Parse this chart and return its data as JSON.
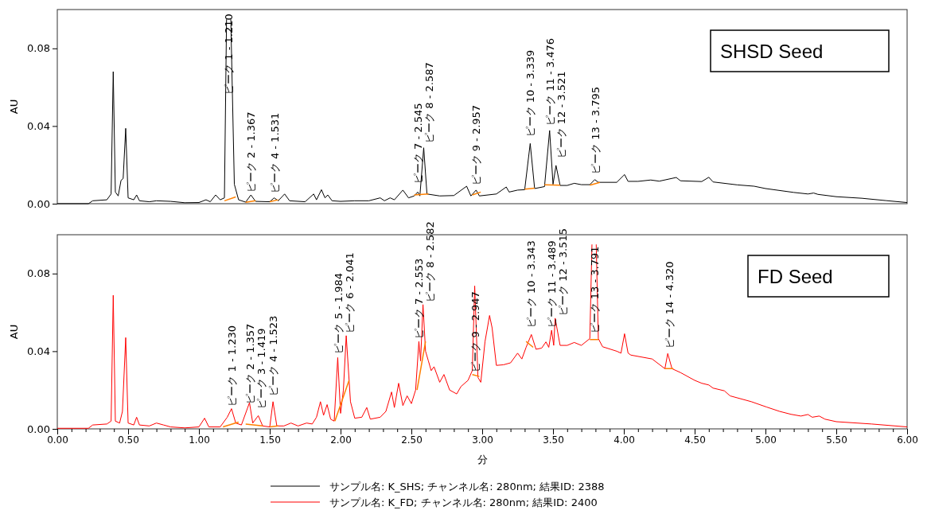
{
  "chart_data": [
    {
      "type": "line",
      "title": "SHSD Seed",
      "ylabel": "AU",
      "xlim": [
        0,
        6
      ],
      "ylim": [
        0,
        0.1
      ],
      "yticks": [
        {
          "value": 0,
          "label": "0.00"
        },
        {
          "value": 0.04,
          "label": "0.04"
        },
        {
          "value": 0.08,
          "label": "0.08"
        }
      ],
      "tick_labels": "y",
      "legend": "bottom",
      "grid": false,
      "series": [
        {
          "name": "サンプル名: K_SHS; チャンネル名: 280nm; 結果ID: 2388",
          "color": "#000000",
          "x": [
            0,
            0.22,
            0.25,
            0.35,
            0.38,
            0.395,
            0.41,
            0.43,
            0.45,
            0.465,
            0.483,
            0.5,
            0.54,
            0.56,
            0.58,
            0.65,
            0.7,
            0.8,
            0.9,
            1.0,
            1.05,
            1.08,
            1.118,
            1.15,
            1.18,
            1.195,
            1.2,
            1.22,
            1.225,
            1.25,
            1.28,
            1.33,
            1.367,
            1.4,
            1.5,
            1.531,
            1.56,
            1.605,
            1.64,
            1.75,
            1.81,
            1.83,
            1.865,
            1.89,
            1.91,
            1.94,
            2.0,
            2.1,
            2.2,
            2.28,
            2.31,
            2.35,
            2.38,
            2.44,
            2.48,
            2.52,
            2.545,
            2.56,
            2.587,
            2.61,
            2.7,
            2.8,
            2.89,
            2.92,
            2.957,
            2.98,
            3.1,
            3.17,
            3.19,
            3.25,
            3.3,
            3.339,
            3.37,
            3.44,
            3.476,
            3.5,
            3.521,
            3.55,
            3.6,
            3.65,
            3.7,
            3.76,
            3.795,
            3.82,
            3.95,
            4.005,
            4.03,
            4.1,
            4.19,
            4.25,
            4.37,
            4.4,
            4.55,
            4.6,
            4.63,
            4.8,
            4.92,
            5.0,
            5.2,
            5.3,
            5.34,
            5.37,
            5.5,
            5.68,
            5.85,
            6.0
          ],
          "values": [
            0,
            0,
            0.0015,
            0.002,
            0.005,
            0.068,
            0.006,
            0.004,
            0.012,
            0.013,
            0.0388,
            0.003,
            0.002,
            0.0045,
            0.0015,
            0.001,
            0.0015,
            0.0012,
            0.0005,
            0.0006,
            0.002,
            0.001,
            0.0045,
            0.002,
            0.003,
            0.095,
            null,
            null,
            0.095,
            0.01,
            0.002,
            0.0008,
            0.0045,
            0.0012,
            0.001,
            0.003,
            0.0015,
            0.005,
            0.0015,
            0.001,
            0.005,
            0.002,
            0.0072,
            0.003,
            0.0045,
            0.0015,
            0.0012,
            0.0015,
            0.0015,
            0.003,
            0.0015,
            0.003,
            0.002,
            0.007,
            0.003,
            0.004,
            0.006,
            0.004,
            0.0288,
            0.005,
            0.004,
            0.0042,
            0.009,
            0.004,
            0.007,
            0.004,
            0.005,
            0.0086,
            0.006,
            0.007,
            0.0072,
            0.031,
            0.0078,
            0.0088,
            0.0377,
            0.01,
            0.0197,
            0.0094,
            0.0094,
            0.0105,
            0.0098,
            0.0098,
            0.0124,
            0.011,
            0.011,
            0.015,
            0.0115,
            0.0115,
            0.0122,
            0.0116,
            0.0135,
            0.0118,
            0.0114,
            0.0136,
            0.0112,
            0.0097,
            0.009,
            0.0078,
            0.0058,
            0.005,
            0.0055,
            0.0048,
            0.0036,
            0.0028,
            0.0016,
            0.0006
          ]
        },
        {
          "color": "#ff8000",
          "x": [
            1.18,
            1.26,
            1.3,
            1.33,
            1.4,
            1.45,
            1.5,
            1.56,
            2.5,
            2.52,
            2.62,
            2.7,
            2.93,
            2.99,
            3.1,
            3.3,
            3.37,
            3.4,
            3.44,
            3.55,
            3.6,
            3.76,
            3.83
          ],
          "values": [
            0.0015,
            0.0035,
            null,
            0.0007,
            0.0015,
            null,
            0.001,
            0.002,
            null,
            0.0045,
            0.005,
            null,
            0.0045,
            0.006,
            null,
            0.0075,
            0.008,
            null,
            0.0097,
            0.0095,
            null,
            0.0095,
            0.011
          ]
        }
      ],
      "annotations": [
        {
          "text": "ピーク 1 - 1.210",
          "x": 1.21,
          "y": 0.055
        },
        {
          "text": "ピーク 2 - 1.367",
          "x": 1.367,
          "y": 0.0045
        },
        {
          "text": "ピーク 4 - 1.531",
          "x": 1.531,
          "y": 0.004
        },
        {
          "text": "ピーク 7 - 2.545",
          "x": 2.545,
          "y": 0.009
        },
        {
          "text": "ピーク 8 - 2.587",
          "x": 2.587,
          "y": 0.03
        },
        {
          "text": "ピーク 9 - 2.957",
          "x": 2.957,
          "y": 0.008
        },
        {
          "text": "ピーク 10 - 3.339",
          "x": 3.339,
          "y": 0.033
        },
        {
          "text": "ピーク 11 - 3.476",
          "x": 3.476,
          "y": 0.039
        },
        {
          "text": "ピーク 12 - 3.521",
          "x": 3.521,
          "y": 0.022
        },
        {
          "text": "ピーク 13 - 3.795",
          "x": 3.795,
          "y": 0.014
        }
      ]
    },
    {
      "type": "line",
      "title": "FD Seed",
      "ylabel": "AU",
      "xlabel": "分",
      "xlim": [
        0,
        6
      ],
      "ylim": [
        0,
        0.1
      ],
      "yticks": [
        {
          "value": 0,
          "label": "0.00"
        },
        {
          "value": 0.04,
          "label": "0.04"
        },
        {
          "value": 0.08,
          "label": "0.08"
        }
      ],
      "legend": "bottom",
      "grid": false,
      "xticks": [
        {
          "value": 0,
          "label": "0.00"
        },
        {
          "value": 0.1,
          "label": null
        },
        {
          "value": 0.2,
          "label": null
        },
        {
          "value": 0.3,
          "label": null
        },
        {
          "value": 0.4,
          "label": null
        },
        {
          "value": 0.5,
          "label": "0.50"
        },
        {
          "value": 0.6,
          "label": null
        },
        {
          "value": 0.7,
          "label": null
        },
        {
          "value": 0.8,
          "label": null
        },
        {
          "value": 0.9,
          "label": null
        },
        {
          "value": 1,
          "label": "1.00"
        },
        {
          "value": 1.1,
          "label": null
        },
        {
          "value": 1.2,
          "label": null
        },
        {
          "value": 1.3,
          "label": null
        },
        {
          "value": 1.4,
          "label": null
        },
        {
          "value": 1.5,
          "label": "1.50"
        },
        {
          "value": 1.6,
          "label": null
        },
        {
          "value": 1.7,
          "label": null
        },
        {
          "value": 1.8,
          "label": null
        },
        {
          "value": 1.9,
          "label": null
        },
        {
          "value": 2,
          "label": "2.00"
        },
        {
          "value": 2.1,
          "label": null
        },
        {
          "value": 2.2,
          "label": null
        },
        {
          "value": 2.3,
          "label": null
        },
        {
          "value": 2.4,
          "label": null
        },
        {
          "value": 2.5,
          "label": "2.50"
        },
        {
          "value": 2.6,
          "label": null
        },
        {
          "value": 2.7,
          "label": null
        },
        {
          "value": 2.8,
          "label": null
        },
        {
          "value": 2.9,
          "label": null
        },
        {
          "value": 3,
          "label": "3.00"
        },
        {
          "value": 3.1,
          "label": null
        },
        {
          "value": 3.2,
          "label": null
        },
        {
          "value": 3.3,
          "label": null
        },
        {
          "value": 3.4,
          "label": null
        },
        {
          "value": 3.5,
          "label": "3.50"
        },
        {
          "value": 3.6,
          "label": null
        },
        {
          "value": 3.7,
          "label": null
        },
        {
          "value": 3.8,
          "label": null
        },
        {
          "value": 3.9,
          "label": null
        },
        {
          "value": 4,
          "label": "4.00"
        },
        {
          "value": 4.1,
          "label": null
        },
        {
          "value": 4.2,
          "label": null
        },
        {
          "value": 4.3,
          "label": null
        },
        {
          "value": 4.4,
          "label": null
        },
        {
          "value": 4.5,
          "label": "4.50"
        },
        {
          "value": 4.6,
          "label": null
        },
        {
          "value": 4.7,
          "label": null
        },
        {
          "value": 4.8,
          "label": null
        },
        {
          "value": 4.9,
          "label": null
        },
        {
          "value": 5,
          "label": "5.00"
        },
        {
          "value": 5.1,
          "label": null
        },
        {
          "value": 5.2,
          "label": null
        },
        {
          "value": 5.3,
          "label": null
        },
        {
          "value": 5.4,
          "label": null
        },
        {
          "value": 5.5,
          "label": "5.50"
        },
        {
          "value": 5.6,
          "label": null
        },
        {
          "value": 5.7,
          "label": null
        },
        {
          "value": 5.8,
          "label": null
        },
        {
          "value": 5.9,
          "label": null
        },
        {
          "value": 6,
          "label": "6.00"
        }
      ],
      "series": [
        {
          "name": "サンプル名: K_FD; チャンネル名: 280nm; 結果ID: 2400",
          "color": "#ff0000",
          "x": [
            0,
            0.22,
            0.25,
            0.35,
            0.38,
            0.395,
            0.41,
            0.44,
            0.46,
            0.483,
            0.5,
            0.54,
            0.56,
            0.58,
            0.65,
            0.7,
            0.75,
            0.8,
            0.9,
            1.0,
            1.04,
            1.07,
            1.15,
            1.2,
            1.23,
            1.26,
            1.3,
            1.357,
            1.38,
            1.419,
            1.45,
            1.5,
            1.523,
            1.55,
            1.6,
            1.65,
            1.7,
            1.76,
            1.8,
            1.83,
            1.858,
            1.88,
            1.905,
            1.93,
            1.955,
            1.98,
            2.0,
            2.02,
            2.04,
            2.07,
            2.1,
            2.15,
            2.185,
            2.21,
            2.28,
            2.32,
            2.36,
            2.38,
            2.41,
            2.44,
            2.47,
            2.5,
            2.53,
            2.553,
            2.565,
            2.582,
            2.6,
            2.62,
            2.64,
            2.66,
            2.7,
            2.73,
            2.77,
            2.82,
            2.85,
            2.9,
            2.93,
            2.947,
            2.97,
            2.99,
            3.02,
            3.052,
            3.07,
            3.1,
            3.15,
            3.2,
            3.25,
            3.28,
            3.31,
            3.347,
            3.38,
            3.42,
            3.45,
            3.47,
            3.49,
            3.505,
            3.515,
            3.55,
            3.6,
            3.65,
            3.7,
            3.76,
            3.775,
            3.78,
            3.8,
            3.805,
            3.82,
            3.85,
            3.95,
            3.98,
            4.005,
            4.03,
            4.05,
            4.2,
            4.29,
            4.31,
            4.34,
            4.4,
            4.5,
            4.55,
            4.6,
            4.63,
            4.71,
            4.75,
            4.9,
            5.01,
            5.1,
            5.18,
            5.25,
            5.3,
            5.33,
            5.38,
            5.42,
            5.5,
            5.75,
            6.0
          ],
          "values": [
            0.0003,
            0.0003,
            0.002,
            0.0025,
            0.004,
            0.0688,
            0.004,
            0.003,
            0.009,
            0.047,
            0.003,
            0.002,
            0.006,
            0.002,
            0.0015,
            0.003,
            0.002,
            0.001,
            0.0005,
            0.001,
            0.0055,
            0.001,
            0.001,
            0.006,
            0.0104,
            0.003,
            0.002,
            0.0135,
            0.003,
            0.0068,
            0.0015,
            0.001,
            0.014,
            0.0015,
            0.0015,
            0.003,
            0.0015,
            0.003,
            0.0025,
            0.006,
            0.014,
            0.007,
            0.0125,
            0.005,
            0.004,
            0.0367,
            0.008,
            0.02,
            0.048,
            0.014,
            0.0055,
            0.006,
            0.011,
            0.005,
            0.006,
            0.009,
            0.019,
            0.011,
            0.0235,
            0.012,
            0.017,
            0.013,
            0.02,
            0.045,
            0.035,
            0.064,
            0.04,
            0.035,
            0.03,
            0.032,
            0.024,
            0.028,
            0.02,
            0.018,
            0.0218,
            0.025,
            0.03,
            0.0736,
            0.0265,
            0.024,
            0.045,
            0.0584,
            0.052,
            0.0327,
            0.033,
            0.034,
            0.039,
            0.036,
            0.042,
            0.0486,
            0.041,
            0.0416,
            0.0448,
            0.042,
            0.0508,
            0.043,
            0.057,
            0.043,
            0.043,
            0.0445,
            0.043,
            0.0465,
            0.095,
            null,
            null,
            0.095,
            0.0465,
            0.0423,
            0.04,
            0.039,
            0.049,
            0.039,
            0.038,
            0.036,
            0.031,
            0.0388,
            0.031,
            0.029,
            0.025,
            0.0235,
            0.0226,
            0.021,
            0.0196,
            0.017,
            0.014,
            0.0112,
            0.009,
            0.0075,
            0.0066,
            0.0074,
            0.006,
            0.0066,
            0.005,
            0.0037,
            0.0025,
            0.001
          ]
        },
        {
          "color": "#ff8000",
          "x": [
            1.17,
            1.28,
            1.3,
            1.33,
            1.45,
            1.48,
            1.5,
            1.56,
            1.9,
            1.96,
            2.06,
            2.3,
            2.54,
            2.6,
            2.7,
            2.93,
            2.98,
            3.2,
            3.31,
            3.36,
            3.5,
            3.76,
            3.82,
            4.0,
            4.29,
            4.35
          ],
          "values": [
            0.001,
            0.0035,
            null,
            0.0025,
            0.0015,
            null,
            0.001,
            0.0015,
            null,
            0.004,
            0.025,
            null,
            0.02,
            0.045,
            null,
            0.028,
            0.027,
            null,
            0.045,
            0.042,
            null,
            0.046,
            0.046,
            null,
            0.031,
            0.031
          ]
        }
      ],
      "annotations": [
        {
          "text": "ピーク 1 - 1.230",
          "x": 1.23,
          "y": 0.0104
        },
        {
          "text": "ピーク 2 - 1.357",
          "x": 1.357,
          "y": 0.0114
        },
        {
          "text": "ピーク 3 - 1.419",
          "x": 1.419,
          "y": 0.009
        },
        {
          "text": "ピーク 4 - 1.523",
          "x": 1.523,
          "y": 0.0155
        },
        {
          "text": "ピーク 5 - 1.984",
          "x": 1.984,
          "y": 0.0375
        },
        {
          "text": "ピーク 6 - 2.041",
          "x": 2.04,
          "y": 0.048
        },
        {
          "text": "ピーク 7 - 2.553",
          "x": 2.553,
          "y": 0.045
        },
        {
          "text": "ピーク 8 - 2.582",
          "x": 2.582,
          "y": 0.064
        },
        {
          "text": "ピーク 9 - 2.947",
          "x": 2.947,
          "y": 0.028
        },
        {
          "text": "ピーク 10 - 3.343",
          "x": 3.343,
          "y": 0.0508
        },
        {
          "text": "ピーク 11 - 3.489",
          "x": 3.489,
          "y": 0.0508
        },
        {
          "text": "ピーク 12 - 3.515",
          "x": 3.515,
          "y": 0.057
        },
        {
          "text": "ピーク 13 - 3.791",
          "x": 3.791,
          "y": 0.0478
        },
        {
          "text": "ピーク 14 - 4.320",
          "x": 4.32,
          "y": 0.04
        }
      ]
    }
  ]
}
